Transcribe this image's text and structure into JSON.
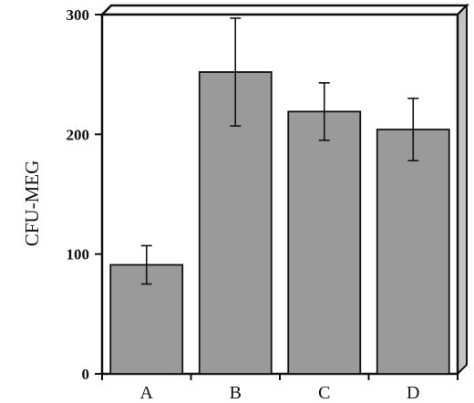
{
  "chart_data": {
    "type": "bar",
    "categories": [
      "A",
      "B",
      "C",
      "D"
    ],
    "values": [
      91,
      252,
      219,
      204
    ],
    "errors": [
      16,
      45,
      24,
      26
    ],
    "title": "",
    "xlabel": "",
    "ylabel": "CFU-MEG",
    "ylim": [
      0,
      300
    ],
    "yticks": [
      0,
      100,
      200,
      300
    ],
    "grid": false,
    "style": "3d-box",
    "bar_color": "#9a9a9a"
  }
}
